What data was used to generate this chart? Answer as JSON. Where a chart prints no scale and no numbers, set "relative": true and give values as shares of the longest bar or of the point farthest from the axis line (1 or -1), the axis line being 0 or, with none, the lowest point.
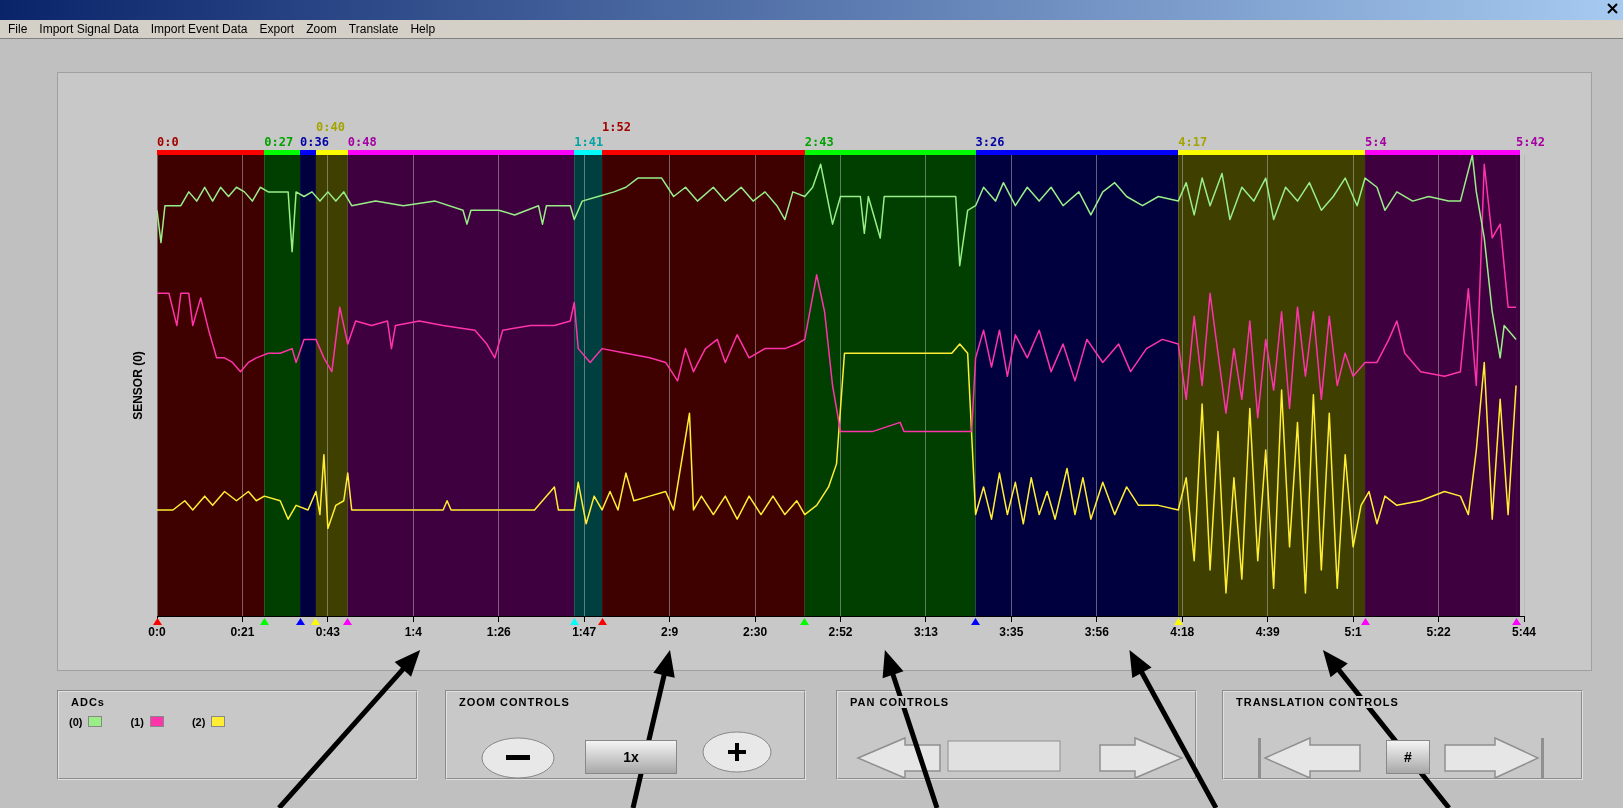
{
  "chart_data": {
    "type": "line",
    "relative": true,
    "ylabel": "SENSOR (0)",
    "legend_title": "ADCs",
    "legend": "bottom left",
    "grid": "x",
    "xlim": [
      0,
      344
    ],
    "xticks": [
      {
        "value": 0,
        "label": "0:0"
      },
      {
        "value": 21.5,
        "label": "0:21"
      },
      {
        "value": 43,
        "label": "0:43"
      },
      {
        "value": 64.5,
        "label": "1:4"
      },
      {
        "value": 86,
        "label": "1:26"
      },
      {
        "value": 107.5,
        "label": "1:47"
      },
      {
        "value": 129,
        "label": "2:9"
      },
      {
        "value": 150.5,
        "label": "2:30"
      },
      {
        "value": 172,
        "label": "2:52"
      },
      {
        "value": 193.5,
        "label": "3:13"
      },
      {
        "value": 215,
        "label": "3:35"
      },
      {
        "value": 236.5,
        "label": "3:56"
      },
      {
        "value": 258,
        "label": "4:18"
      },
      {
        "value": 279.5,
        "label": "4:39"
      },
      {
        "value": 301,
        "label": "5:1"
      },
      {
        "value": 322.5,
        "label": "5:22"
      },
      {
        "value": 344,
        "label": "5:44"
      }
    ],
    "bands": [
      {
        "axis": "x",
        "from": 0,
        "to": 27,
        "label": "0:0",
        "color": "#3f0000"
      },
      {
        "axis": "x",
        "from": 27,
        "to": 36,
        "label": "0:27",
        "color": "#003f00"
      },
      {
        "axis": "x",
        "from": 36,
        "to": 40,
        "label": "0:36",
        "color": "#00003f"
      },
      {
        "axis": "x",
        "from": 40,
        "to": 48,
        "label": "0:40",
        "color": "#3f3f00"
      },
      {
        "axis": "x",
        "from": 48,
        "to": 105,
        "label": "0:48",
        "color": "#3f003f"
      },
      {
        "axis": "x",
        "from": 105,
        "to": 112,
        "label": "1:41",
        "color": "#003f3f"
      },
      {
        "axis": "x",
        "from": 112,
        "to": 163,
        "label": "1:52",
        "color": "#3f0000"
      },
      {
        "axis": "x",
        "from": 163,
        "to": 206,
        "label": "2:43",
        "color": "#003f00"
      },
      {
        "axis": "x",
        "from": 206,
        "to": 257,
        "label": "3:26",
        "color": "#00003f"
      },
      {
        "axis": "x",
        "from": 257,
        "to": 304,
        "label": "4:17",
        "color": "#3f3f00"
      },
      {
        "axis": "x",
        "from": 304,
        "to": 342,
        "label": "5:4",
        "color": "#3f003f"
      },
      {
        "axis": "x",
        "from": 342,
        "to": 343,
        "label": "5:42",
        "color": "#3f003f"
      }
    ],
    "series": [
      {
        "name": "(0)",
        "color": "#99ee88",
        "x": [
          0,
          1,
          2,
          6,
          8,
          10,
          12,
          14,
          16,
          18,
          20,
          22,
          24,
          26,
          28,
          31,
          33,
          34,
          35,
          37,
          39,
          41,
          43,
          45,
          47,
          49,
          55,
          62,
          70,
          77,
          78,
          79,
          86,
          90,
          96,
          97,
          98,
          104,
          105,
          107,
          111,
          115,
          118,
          121,
          127,
          130,
          133,
          136,
          140,
          143,
          147,
          150,
          153,
          156,
          158,
          160,
          163,
          165,
          167,
          170,
          172,
          177,
          178,
          179,
          182,
          183,
          195,
          201,
          202,
          204,
          206,
          208,
          211,
          213,
          216,
          219,
          222,
          225,
          228,
          232,
          235,
          238,
          241,
          244,
          248,
          252,
          257,
          259,
          261,
          263,
          265,
          268,
          270,
          273,
          276,
          279,
          281,
          284,
          287,
          290,
          293,
          296,
          299,
          302,
          304,
          307,
          309,
          312,
          316,
          320,
          325,
          328,
          331,
          332,
          334,
          336,
          338,
          339,
          341,
          342
        ],
        "values": [
          0.88,
          0.81,
          0.89,
          0.89,
          0.92,
          0.9,
          0.93,
          0.9,
          0.93,
          0.91,
          0.93,
          0.92,
          0.9,
          0.93,
          0.92,
          0.92,
          0.92,
          0.79,
          0.92,
          0.91,
          0.92,
          0.9,
          0.92,
          0.9,
          0.92,
          0.89,
          0.9,
          0.89,
          0.9,
          0.88,
          0.85,
          0.88,
          0.88,
          0.87,
          0.89,
          0.85,
          0.89,
          0.89,
          0.86,
          0.9,
          0.91,
          0.92,
          0.93,
          0.95,
          0.95,
          0.91,
          0.93,
          0.9,
          0.93,
          0.9,
          0.93,
          0.9,
          0.92,
          0.89,
          0.86,
          0.92,
          0.91,
          0.93,
          0.98,
          0.85,
          0.91,
          0.91,
          0.83,
          0.91,
          0.82,
          0.91,
          0.91,
          0.91,
          0.76,
          0.88,
          0.89,
          0.93,
          0.9,
          0.94,
          0.89,
          0.93,
          0.9,
          0.93,
          0.89,
          0.92,
          0.87,
          0.92,
          0.94,
          0.91,
          0.89,
          0.91,
          0.9,
          0.94,
          0.87,
          0.95,
          0.89,
          0.96,
          0.86,
          0.93,
          0.9,
          0.95,
          0.86,
          0.93,
          0.9,
          0.94,
          0.88,
          0.91,
          0.95,
          0.89,
          0.95,
          0.93,
          0.88,
          0.92,
          0.9,
          0.91,
          0.9,
          0.9,
          1,
          0.92,
          0.82,
          0.66,
          0.56,
          0.63,
          0.61,
          0.6
        ]
      },
      {
        "name": "(1)",
        "color": "#ff33aa",
        "x": [
          0,
          3,
          5,
          6,
          8,
          9,
          11,
          13,
          15,
          17,
          19,
          21,
          23,
          25,
          28,
          31,
          34,
          35,
          37,
          40,
          42,
          44,
          46,
          48,
          50,
          54,
          58,
          59,
          60,
          66,
          72,
          80,
          83,
          85,
          87,
          94,
          100,
          104,
          105,
          106,
          109,
          112,
          118,
          124,
          128,
          131,
          133,
          135,
          138,
          141,
          143,
          146,
          149,
          153,
          158,
          161,
          163,
          166,
          168,
          170,
          172,
          180,
          187,
          188,
          197,
          205,
          206,
          208,
          210,
          212,
          214,
          216,
          219,
          222,
          225,
          228,
          231,
          234,
          238,
          242,
          245,
          249,
          253,
          257,
          259,
          261,
          263,
          265,
          267,
          269,
          271,
          273,
          275,
          277,
          279,
          281,
          283,
          285,
          287,
          289,
          291,
          293,
          295,
          297,
          299,
          301,
          304,
          307,
          310,
          312,
          314,
          318,
          324,
          328,
          330,
          332,
          334,
          336,
          338,
          340,
          342
        ],
        "values": [
          0.7,
          0.7,
          0.63,
          0.7,
          0.7,
          0.63,
          0.69,
          0.62,
          0.56,
          0.56,
          0.55,
          0.53,
          0.55,
          0.56,
          0.57,
          0.57,
          0.58,
          0.55,
          0.6,
          0.6,
          0.56,
          0.53,
          0.67,
          0.59,
          0.64,
          0.63,
          0.64,
          0.58,
          0.63,
          0.64,
          0.63,
          0.62,
          0.59,
          0.56,
          0.62,
          0.63,
          0.63,
          0.64,
          0.68,
          0.58,
          0.55,
          0.58,
          0.57,
          0.56,
          0.55,
          0.51,
          0.58,
          0.53,
          0.58,
          0.6,
          0.55,
          0.61,
          0.56,
          0.58,
          0.58,
          0.59,
          0.6,
          0.74,
          0.66,
          0.5,
          0.4,
          0.4,
          0.42,
          0.4,
          0.4,
          0.4,
          0.56,
          0.62,
          0.54,
          0.62,
          0.52,
          0.61,
          0.56,
          0.62,
          0.53,
          0.59,
          0.51,
          0.6,
          0.55,
          0.59,
          0.53,
          0.58,
          0.6,
          0.59,
          0.47,
          0.65,
          0.5,
          0.7,
          0.57,
          0.44,
          0.58,
          0.47,
          0.64,
          0.43,
          0.6,
          0.49,
          0.66,
          0.45,
          0.67,
          0.52,
          0.66,
          0.47,
          0.65,
          0.5,
          0.57,
          0.52,
          0.55,
          0.55,
          0.6,
          0.64,
          0.57,
          0.53,
          0.52,
          0.53,
          0.71,
          0.5,
          0.98,
          0.82,
          0.85,
          0.67,
          0.67
        ]
      },
      {
        "name": "(2)",
        "color": "#ffee33",
        "x": [
          0,
          4,
          7,
          9,
          12,
          14,
          17,
          20,
          23,
          25,
          27,
          31,
          33,
          35,
          38,
          40,
          41,
          42,
          43,
          45,
          47,
          48,
          49,
          52,
          60,
          72,
          73,
          74,
          95,
          100,
          101,
          105,
          106,
          108,
          110,
          112,
          114,
          116,
          118,
          120,
          124,
          128,
          130,
          134,
          135,
          137,
          140,
          143,
          146,
          149,
          152,
          155,
          158,
          161,
          163,
          166,
          169,
          171,
          173,
          180,
          190,
          200,
          202,
          204,
          206,
          208,
          210,
          212,
          214,
          216,
          218,
          220,
          222,
          224,
          226,
          229,
          231,
          233,
          235,
          238,
          241,
          244,
          247,
          252,
          257,
          259,
          261,
          263,
          265,
          267,
          269,
          271,
          273,
          275,
          277,
          279,
          281,
          283,
          285,
          287,
          289,
          291,
          293,
          295,
          297,
          299,
          301,
          303,
          305,
          307,
          309,
          312,
          318,
          324,
          328,
          330,
          332,
          334,
          336,
          338,
          340,
          342
        ],
        "values": [
          0.23,
          0.23,
          0.25,
          0.23,
          0.26,
          0.24,
          0.27,
          0.25,
          0.27,
          0.25,
          0.26,
          0.25,
          0.21,
          0.24,
          0.23,
          0.27,
          0.22,
          0.35,
          0.19,
          0.24,
          0.25,
          0.31,
          0.23,
          0.23,
          0.23,
          0.23,
          0.25,
          0.23,
          0.23,
          0.28,
          0.23,
          0.23,
          0.29,
          0.2,
          0.26,
          0.23,
          0.27,
          0.23,
          0.31,
          0.25,
          0.26,
          0.27,
          0.23,
          0.44,
          0.23,
          0.26,
          0.22,
          0.26,
          0.21,
          0.26,
          0.22,
          0.26,
          0.22,
          0.25,
          0.22,
          0.24,
          0.28,
          0.33,
          0.57,
          0.57,
          0.57,
          0.57,
          0.59,
          0.57,
          0.22,
          0.28,
          0.21,
          0.31,
          0.22,
          0.29,
          0.2,
          0.3,
          0.22,
          0.27,
          0.21,
          0.32,
          0.22,
          0.3,
          0.21,
          0.29,
          0.22,
          0.28,
          0.24,
          0.24,
          0.23,
          0.3,
          0.12,
          0.46,
          0.1,
          0.4,
          0.05,
          0.3,
          0.08,
          0.45,
          0.12,
          0.36,
          0.06,
          0.49,
          0.15,
          0.42,
          0.05,
          0.48,
          0.1,
          0.44,
          0.06,
          0.35,
          0.15,
          0.24,
          0.27,
          0.2,
          0.26,
          0.24,
          0.25,
          0.27,
          0.26,
          0.22,
          0.36,
          0.55,
          0.21,
          0.47,
          0.22,
          0.5
        ]
      }
    ],
    "annotations": [
      "File",
      "Import Signal Data",
      "Import Event Data",
      "Export",
      "Zoom",
      "Translate",
      "Help",
      "ZOOM CONTROLS",
      "PAN CONTROLS",
      "TRANSLATION CONTROLS",
      "1x",
      "#"
    ]
  }
}
